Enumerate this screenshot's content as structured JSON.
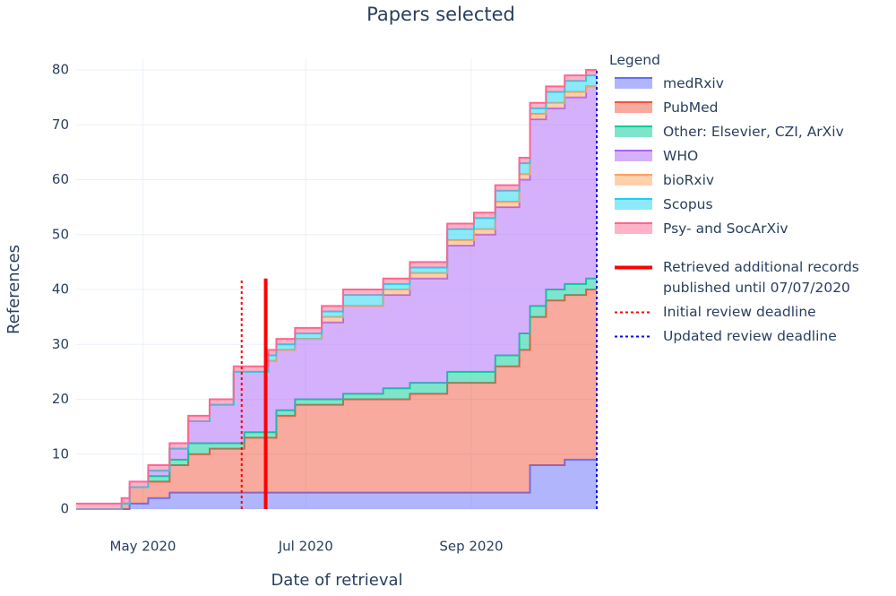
{
  "chart_data": {
    "type": "stacked_step_area",
    "title": "Papers selected",
    "x_label": "Date of retrieval",
    "y_label": "References",
    "legend_title": "Legend",
    "x": [
      "2020-04-06",
      "2020-04-23",
      "2020-04-26",
      "2020-05-03",
      "2020-05-11",
      "2020-05-18",
      "2020-05-26",
      "2020-06-04",
      "2020-06-08",
      "2020-06-17",
      "2020-06-20",
      "2020-06-27",
      "2020-07-07",
      "2020-07-15",
      "2020-07-30",
      "2020-08-09",
      "2020-08-23",
      "2020-09-02",
      "2020-09-10",
      "2020-09-19",
      "2020-09-23",
      "2020-09-29",
      "2020-10-06",
      "2020-10-14",
      "2020-10-18"
    ],
    "series": [
      {
        "name": "medRxiv",
        "color": "#636efa",
        "values": [
          0,
          0,
          1,
          2,
          3,
          3,
          3,
          3,
          3,
          3,
          3,
          3,
          3,
          3,
          3,
          3,
          3,
          3,
          3,
          3,
          8,
          8,
          9,
          9,
          9
        ]
      },
      {
        "name": "PubMed",
        "color": "#ef553b",
        "values": [
          0,
          1,
          3,
          3,
          5,
          7,
          8,
          8,
          10,
          10,
          14,
          16,
          16,
          17,
          17,
          18,
          20,
          20,
          23,
          26,
          27,
          30,
          30,
          31,
          31
        ]
      },
      {
        "name": "Other: Elsevier, CZI, ArXiv",
        "color": "#00cc96",
        "values": [
          0,
          0,
          0,
          1,
          1,
          2,
          1,
          1,
          1,
          1,
          1,
          1,
          1,
          1,
          2,
          2,
          2,
          2,
          2,
          3,
          2,
          2,
          2,
          2,
          2
        ]
      },
      {
        "name": "WHO",
        "color": "#ab63fa",
        "values": [
          0,
          0,
          0,
          1,
          2,
          4,
          7,
          13,
          11,
          13,
          11,
          11,
          14,
          16,
          17,
          19,
          23,
          25,
          27,
          28,
          34,
          33,
          34,
          35,
          35
        ]
      },
      {
        "name": "bioRxiv",
        "color": "#ffa15a",
        "values": [
          0,
          0,
          0,
          0,
          0,
          0,
          0,
          0,
          0,
          0,
          0,
          0,
          1,
          0,
          1,
          1,
          1,
          1,
          1,
          1,
          1,
          1,
          1,
          0,
          0
        ]
      },
      {
        "name": "Scopus",
        "color": "#19d3f3",
        "values": [
          0,
          0,
          0,
          0,
          0,
          0,
          0,
          0,
          0,
          1,
          1,
          1,
          1,
          2,
          1,
          1,
          2,
          2,
          2,
          2,
          1,
          2,
          2,
          2,
          2
        ]
      },
      {
        "name": "Psy- and SocArXiv",
        "color": "#ff6692",
        "values": [
          1,
          1,
          1,
          1,
          1,
          1,
          1,
          1,
          1,
          1,
          1,
          1,
          1,
          1,
          1,
          1,
          1,
          1,
          1,
          1,
          1,
          1,
          1,
          1,
          1
        ]
      }
    ],
    "vlines": [
      {
        "name": "Retrieved additional records published until 07/07/2020",
        "x": "2020-06-16",
        "y": [
          0,
          42
        ],
        "color": "#ff0000",
        "dash": "solid"
      },
      {
        "name": "Initial review deadline",
        "x": "2020-06-07",
        "y": [
          0,
          42
        ],
        "color": "#ff0000",
        "dash": "dot"
      },
      {
        "name": "Updated review deadline",
        "x": "2020-10-18",
        "y": [
          0,
          80
        ],
        "color": "#0000ff",
        "dash": "dot"
      }
    ],
    "xlim": [
      "2020-04-06",
      "2020-10-18"
    ],
    "xticks": [
      {
        "value": "2020-05-01",
        "label": "May 2020"
      },
      {
        "value": "2020-07-01",
        "label": "Jul 2020"
      },
      {
        "value": "2020-09-01",
        "label": "Sep 2020"
      }
    ],
    "ylim": [
      0,
      82
    ],
    "yticks": [
      0,
      10,
      20,
      30,
      40,
      50,
      60,
      70,
      80
    ],
    "grid": true
  }
}
